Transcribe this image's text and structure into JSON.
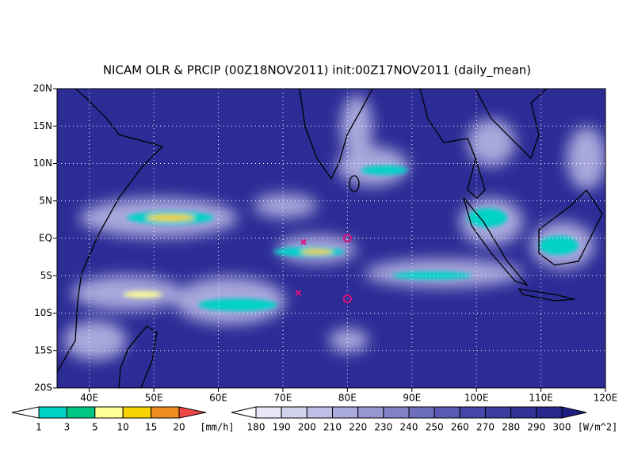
{
  "map_data": {
    "title": "NICAM OLR & PRCIP (00Z18NOV2011) init:00Z17NOV2011 (daily_mean)",
    "lonlim": [
      35,
      120
    ],
    "latlim": [
      -20,
      20
    ],
    "lon_ticks": [
      {
        "value": 40,
        "label": "40E"
      },
      {
        "value": 50,
        "label": "50E"
      },
      {
        "value": 60,
        "label": "60E"
      },
      {
        "value": 70,
        "label": "70E"
      },
      {
        "value": 80,
        "label": "80E"
      },
      {
        "value": 90,
        "label": "90E"
      },
      {
        "value": 100,
        "label": "100E"
      },
      {
        "value": 110,
        "label": "110E"
      },
      {
        "value": 120,
        "label": "120E"
      }
    ],
    "lat_ticks": [
      {
        "value": -20,
        "label": "20S"
      },
      {
        "value": -15,
        "label": "15S"
      },
      {
        "value": -10,
        "label": "10S"
      },
      {
        "value": -5,
        "label": "5S"
      },
      {
        "value": 0,
        "label": "EQ"
      },
      {
        "value": 5,
        "label": "5N"
      },
      {
        "value": 10,
        "label": "10N"
      },
      {
        "value": 15,
        "label": "15N"
      },
      {
        "value": 20,
        "label": "20N"
      }
    ],
    "grid": true,
    "markers": [
      {
        "shape": "x",
        "lon": 73.2,
        "lat": -0.5,
        "color": "#e0107a"
      },
      {
        "shape": "x",
        "lon": 72.4,
        "lat": -7.3,
        "color": "#e0107a"
      },
      {
        "shape": "o",
        "lon": 80,
        "lat": 0,
        "color": "#e0107a"
      },
      {
        "shape": "o",
        "lon": 80,
        "lat": -8.1,
        "color": "#e0107a"
      }
    ],
    "precip_colorbar": {
      "levels": [
        1,
        3,
        5,
        10,
        15,
        20
      ],
      "unit": "[mm/h]",
      "colors": [
        "#ffffff",
        "#00d2c8",
        "#00c882",
        "#ffff96",
        "#f5d200",
        "#f08c1e",
        "#f04646"
      ]
    },
    "olr_colorbar": {
      "levels": [
        180,
        190,
        200,
        210,
        220,
        230,
        240,
        250,
        260,
        270,
        280,
        290,
        300
      ],
      "unit": "[W/m^2]",
      "colors": [
        "#ffffff",
        "#e6e6f5",
        "#d2d2ee",
        "#bebee6",
        "#aaaadc",
        "#9696d2",
        "#8282c8",
        "#6e6ebe",
        "#5a5ab4",
        "#4646aa",
        "#3c3ca0",
        "#323296",
        "#28288c",
        "#1e1e82"
      ]
    }
  }
}
